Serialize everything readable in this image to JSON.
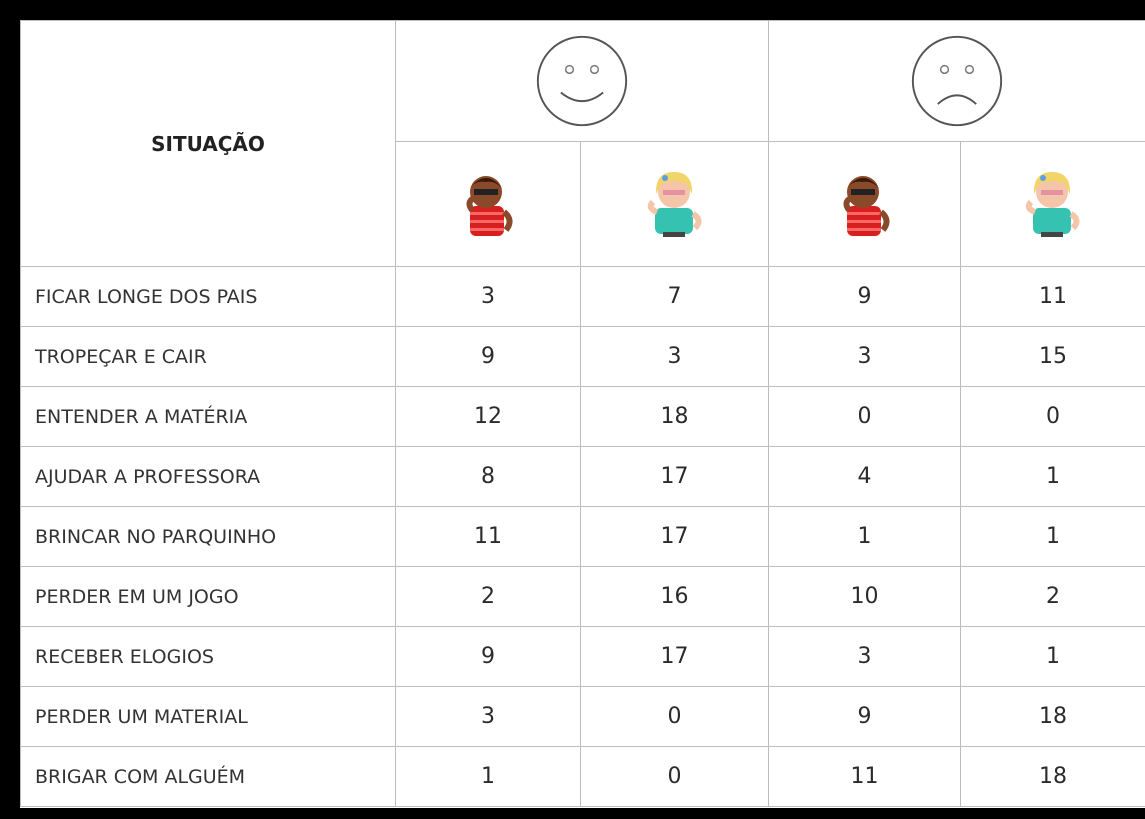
{
  "table": {
    "header": {
      "title": "SITUAÇÃO"
    },
    "rows": [
      [
        "FICAR LONGE DOS PAIS",
        3,
        7,
        9,
        11
      ],
      [
        "TROPEÇAR E CAIR",
        9,
        3,
        3,
        15
      ],
      [
        "ENTENDER A MATÉRIA",
        12,
        18,
        0,
        0
      ],
      [
        "AJUDAR A PROFESSORA",
        8,
        17,
        4,
        1
      ],
      [
        "BRINCAR NO PARQUINHO",
        11,
        17,
        1,
        1
      ],
      [
        "PERDER EM UM JOGO",
        2,
        16,
        10,
        2
      ],
      [
        "RECEBER ELOGIOS",
        9,
        17,
        3,
        1
      ],
      [
        "PERDER UM MATERIAL",
        3,
        0,
        9,
        18
      ],
      [
        "BRIGAR COM ALGUÉM",
        1,
        0,
        11,
        18
      ]
    ]
  }
}
